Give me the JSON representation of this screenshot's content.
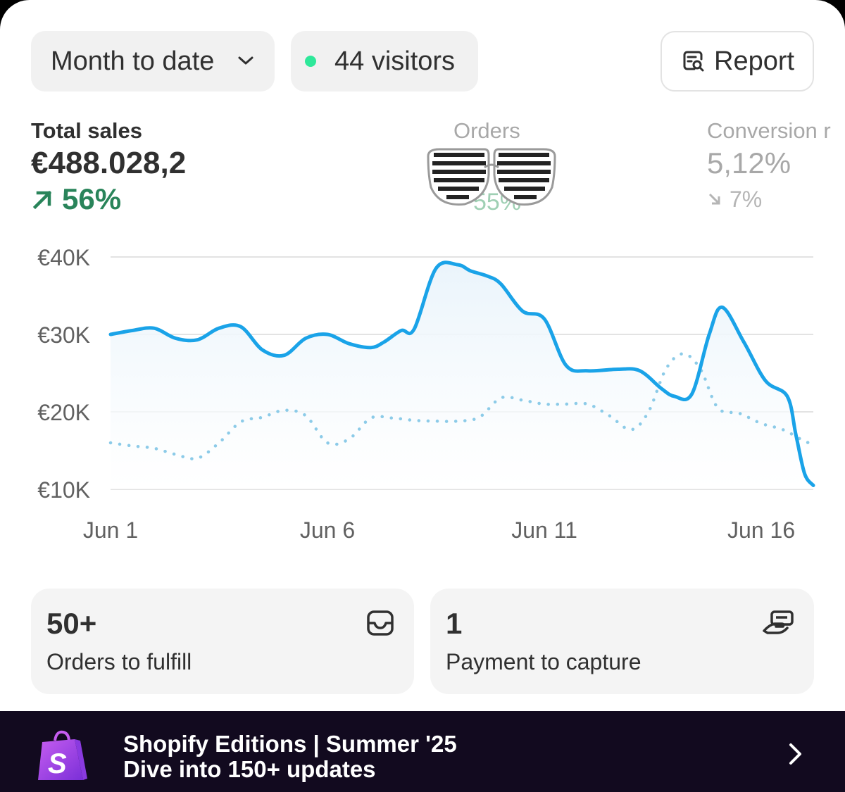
{
  "colors": {
    "live_dot": "#2ee89a",
    "line_current": "#1aa3e8",
    "line_previous": "#8ccbe8",
    "grid": "#e3e3e3",
    "positive": "#29845a",
    "banner_bg": "#120a1f"
  },
  "toolbar": {
    "range_label": "Month to date",
    "visitors_label": "44 visitors",
    "report_label": "Report"
  },
  "metrics": {
    "total_sales": {
      "label": "Total sales",
      "value": "€488.028,2",
      "delta": "56%",
      "direction": "up"
    },
    "orders": {
      "label": "Orders",
      "delta": "55%"
    },
    "conversion": {
      "label": "Conversion r",
      "value": "5,12%",
      "delta": "7%",
      "direction": "down"
    }
  },
  "chart_data": {
    "type": "line",
    "y_ticks": [
      "€40K",
      "€30K",
      "€20K",
      "€10K"
    ],
    "ylim": [
      10,
      40
    ],
    "x_ticks": [
      "Jun 1",
      "Jun 6",
      "Jun 11",
      "Jun 16"
    ],
    "x_tick_days": [
      1,
      6,
      11,
      16
    ],
    "xlim": [
      1,
      17.2
    ],
    "series": [
      {
        "name": "Current period",
        "style": "solid",
        "x": [
          1,
          1.5,
          2,
          2.5,
          3,
          3.5,
          4,
          4.5,
          5,
          5.5,
          6,
          6.5,
          7,
          7.3,
          7.7,
          8,
          8.5,
          9,
          9.3,
          9.7,
          10,
          10.5,
          11,
          11.5,
          12,
          12.7,
          13.2,
          13.7,
          14,
          14.4,
          14.8,
          15.1,
          15.6,
          16.1,
          16.6,
          16.8,
          17,
          17.2
        ],
        "values": [
          30,
          30.5,
          30.8,
          29.5,
          29.3,
          30.8,
          31,
          28,
          27.3,
          29.5,
          30,
          28.8,
          28.3,
          29,
          30.5,
          30.7,
          38.5,
          39,
          38.2,
          37.5,
          36.5,
          33,
          32,
          26,
          25.3,
          25.5,
          25.3,
          23,
          22,
          22.3,
          30,
          33.5,
          29,
          24,
          22,
          17,
          12,
          10.5
        ]
      },
      {
        "name": "Previous period",
        "style": "dotted",
        "x": [
          1,
          1.5,
          2,
          2.5,
          3,
          3.5,
          4,
          4.5,
          5,
          5.5,
          6,
          6.5,
          7,
          7.5,
          8,
          8.5,
          9,
          9.5,
          10,
          10.5,
          11,
          11.5,
          12,
          12.5,
          13,
          13.4,
          13.8,
          14.2,
          14.6,
          15,
          15.5,
          16,
          16.5,
          17,
          17.2
        ],
        "values": [
          16,
          15.6,
          15.3,
          14.5,
          14,
          16,
          18.7,
          19.3,
          20.2,
          19.5,
          16,
          16.5,
          19.2,
          19.2,
          18.9,
          18.8,
          18.8,
          19.3,
          21.8,
          21.5,
          21,
          21,
          21,
          19.5,
          17.7,
          20,
          25.5,
          27.5,
          25.5,
          20.5,
          19.8,
          18.5,
          17.7,
          16.2,
          15.9
        ]
      }
    ],
    "legend": "none",
    "grid": true
  },
  "tiles": [
    {
      "number": "50+",
      "label": "Orders to fulfill"
    },
    {
      "number": "1",
      "label": "Payment to capture"
    }
  ],
  "banner": {
    "title": "Shopify Editions | Summer '25",
    "subtitle": "Dive into 150+ updates"
  }
}
